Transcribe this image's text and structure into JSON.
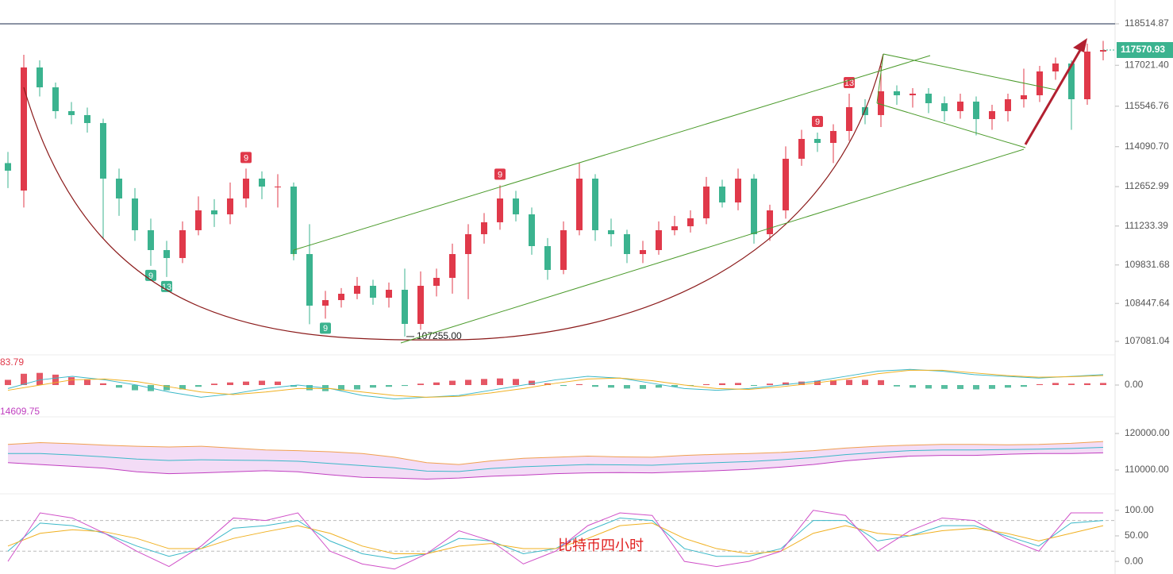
{
  "chart_data": [
    {
      "type": "candlestick",
      "open": [
        113500,
        112512,
        116943,
        116228,
        115371,
        115228,
        114942,
        112941,
        112226,
        111083,
        110368,
        110082,
        111083,
        111798,
        111655,
        112226,
        112941,
        112655,
        112655,
        110225,
        108367,
        108567,
        108796,
        109082,
        108653,
        108939,
        107710,
        109082,
        109368,
        110225,
        110940,
        111369,
        112226,
        111655,
        110511,
        109654,
        111083,
        112941,
        111083,
        110940,
        110225,
        110368,
        111083,
        111226,
        111512,
        112655,
        112083,
        112941,
        110940,
        111798,
        113656,
        114370,
        114227,
        114656,
        115514,
        115228,
        116085,
        115942,
        116000,
        115656,
        115371,
        115714,
        115085,
        115371,
        115799,
        115942,
        116800,
        117086,
        115799,
        117515
      ],
      "high": [
        113900,
        117400,
        117200,
        116400,
        115700,
        115500,
        115100,
        113300,
        112600,
        111500,
        110700,
        111400,
        112300,
        112200,
        112800,
        113300,
        113200,
        113100,
        112800,
        111300,
        108900,
        109000,
        109400,
        109300,
        109200,
        109700,
        109600,
        109700,
        110600,
        111300,
        111700,
        112700,
        112500,
        111900,
        110800,
        111400,
        113500,
        113100,
        111500,
        111100,
        110700,
        111400,
        111600,
        111800,
        113000,
        112900,
        113300,
        113100,
        112000,
        114100,
        114700,
        114600,
        114900,
        116000,
        115800,
        117000,
        116300,
        116200,
        116200,
        115900,
        116000,
        115900,
        115600,
        116000,
        116900,
        117000,
        117300,
        117200,
        117800,
        117900
      ],
      "low": [
        112600,
        111900,
        115900,
        115100,
        114900,
        114600,
        110800,
        111600,
        110700,
        109800,
        109400,
        109900,
        110900,
        111200,
        111300,
        111900,
        112200,
        111900,
        110000,
        107700,
        107900,
        108300,
        108600,
        108400,
        108300,
        107255,
        107500,
        108700,
        108800,
        108600,
        110600,
        111100,
        111400,
        110200,
        109300,
        109500,
        110900,
        110700,
        110500,
        109900,
        109900,
        110200,
        110900,
        111000,
        111300,
        111900,
        111800,
        110600,
        110700,
        111500,
        113400,
        113900,
        113500,
        114300,
        114900,
        114800,
        115600,
        115500,
        115300,
        115000,
        115100,
        114500,
        114700,
        115000,
        115500,
        115700,
        116500,
        114700,
        115600,
        117200
      ],
      "close": [
        113227,
        116943,
        116228,
        115371,
        115228,
        114942,
        112941,
        112226,
        111083,
        110368,
        110082,
        111083,
        111798,
        111655,
        112226,
        112941,
        112655,
        112655,
        110225,
        108367,
        108567,
        108796,
        109082,
        108653,
        108939,
        107710,
        109082,
        109368,
        110225,
        110940,
        111369,
        112226,
        111655,
        110511,
        109654,
        111083,
        112941,
        111083,
        110940,
        110225,
        110368,
        111083,
        111226,
        111512,
        112655,
        112083,
        112941,
        110940,
        111798,
        113656,
        114370,
        114227,
        114656,
        115514,
        115228,
        116085,
        115942,
        116000,
        115656,
        115371,
        115714,
        115085,
        115371,
        115799,
        115942,
        116800,
        117086,
        115799,
        117515,
        117571
      ],
      "up_color": "#e0394a",
      "down_color": "#3bb38f",
      "ylim": [
        106652,
        119372
      ],
      "yticks": [
        118514.87,
        {
          "value": 117021.4,
          "label": "117021.40"
        },
        115546.76,
        {
          "value": 114090.7,
          "label": "114090.70"
        },
        112652.99,
        111233.39,
        109831.68,
        108447.64,
        107081.04
      ],
      "last_price": 117570.93,
      "low_annotation": {
        "value": 107255,
        "label": "107255.00"
      },
      "setup_labels": [
        "9",
        "13",
        "9",
        "9",
        "9",
        "9",
        "13"
      ]
    },
    {
      "type": "macd",
      "readout": 83.79,
      "hist": [
        300,
        650,
        700,
        600,
        450,
        300,
        100,
        -150,
        -300,
        -350,
        -300,
        -250,
        -100,
        80,
        150,
        200,
        250,
        200,
        -100,
        -300,
        -350,
        -300,
        -250,
        -150,
        -100,
        -50,
        80,
        150,
        250,
        300,
        350,
        380,
        350,
        250,
        100,
        -50,
        50,
        -100,
        -150,
        -200,
        -220,
        -150,
        -100,
        -50,
        50,
        100,
        120,
        -50,
        80,
        150,
        200,
        250,
        280,
        300,
        300,
        280,
        -80,
        -150,
        -200,
        -220,
        -230,
        -250,
        -220,
        -150,
        -100,
        50,
        120,
        80,
        100,
        120
      ],
      "series": [
        {
          "color": "#3bb8c8",
          "values": [
            -200,
            300,
            500,
            300,
            0,
            -400,
            -700,
            -500,
            -200,
            0,
            -200,
            -600,
            -800,
            -700,
            -600,
            -300,
            0,
            300,
            500,
            400,
            100,
            -200,
            -300,
            -200,
            0,
            200,
            500,
            800,
            900,
            800,
            600,
            500,
            400,
            500,
            600
          ]
        },
        {
          "color": "#f0b020",
          "values": [
            -300,
            0,
            300,
            350,
            200,
            -100,
            -400,
            -550,
            -400,
            -200,
            -200,
            -400,
            -600,
            -700,
            -650,
            -450,
            -200,
            100,
            350,
            400,
            250,
            0,
            -200,
            -250,
            -100,
            100,
            350,
            650,
            850,
            850,
            700,
            550,
            450,
            480,
            550
          ]
        }
      ],
      "ylim": [
        -1600,
        1600
      ],
      "yticks": [
        {
          "value": 0,
          "label": "0.00"
        }
      ]
    },
    {
      "type": "bands",
      "readout": 14609.75,
      "series": [
        {
          "color": "#f0a050",
          "values": [
            117000,
            117500,
            117200,
            116800,
            116500,
            116300,
            116500,
            116000,
            115500,
            115300,
            115000,
            114500,
            113500,
            112000,
            111500,
            112500,
            113200,
            113500,
            113800,
            113600,
            113500,
            114000,
            114300,
            114500,
            114800,
            115300,
            116000,
            116500,
            116800,
            117000,
            117000,
            116900,
            117000,
            117300,
            117800
          ]
        },
        {
          "color": "#3bb8c8",
          "values": [
            114500,
            114500,
            114100,
            113600,
            113000,
            112600,
            112800,
            112700,
            112600,
            112400,
            111800,
            111200,
            110600,
            109700,
            109600,
            110400,
            110900,
            111200,
            111500,
            111400,
            111300,
            111700,
            112000,
            112300,
            112800,
            113400,
            114200,
            114800,
            115300,
            115500,
            115500,
            115600,
            115700,
            115900,
            116200
          ]
        },
        {
          "color": "#c040c0",
          "values": [
            112000,
            111500,
            111000,
            110500,
            109500,
            109000,
            109200,
            109500,
            109800,
            109500,
            108700,
            108000,
            107800,
            107500,
            107800,
            108300,
            108600,
            109000,
            109200,
            109300,
            109200,
            109500,
            109800,
            110200,
            110800,
            111500,
            112500,
            113200,
            113800,
            114000,
            114000,
            114300,
            114500,
            114500,
            114700
          ]
        }
      ],
      "fill": "#f3dcf6",
      "ylim": [
        105000,
        123478
      ],
      "yticks": [
        {
          "value": 120000,
          "label": "120000.00"
        },
        {
          "value": 110000,
          "label": "110000.00"
        }
      ]
    },
    {
      "type": "kdj",
      "series": [
        {
          "color": "#3bb8c8",
          "values": [
            20,
            75,
            70,
            55,
            30,
            10,
            25,
            65,
            70,
            80,
            40,
            15,
            5,
            15,
            45,
            40,
            15,
            25,
            60,
            85,
            80,
            25,
            10,
            10,
            25,
            80,
            80,
            40,
            50,
            70,
            70,
            50,
            30,
            75,
            80
          ]
        },
        {
          "color": "#f0b020",
          "values": [
            30,
            55,
            62,
            58,
            45,
            25,
            25,
            45,
            58,
            70,
            55,
            30,
            15,
            15,
            30,
            35,
            25,
            25,
            45,
            70,
            75,
            45,
            25,
            15,
            20,
            55,
            70,
            55,
            50,
            60,
            65,
            55,
            40,
            55,
            70
          ]
        },
        {
          "color": "#d050c8",
          "values": [
            0,
            95,
            85,
            55,
            20,
            -10,
            30,
            85,
            80,
            95,
            20,
            -5,
            -15,
            15,
            60,
            40,
            -5,
            20,
            70,
            95,
            90,
            0,
            -10,
            0,
            20,
            100,
            90,
            20,
            60,
            85,
            80,
            45,
            20,
            95,
            95
          ]
        }
      ],
      "levels": [
        20,
        80
      ],
      "ylim": [
        -20,
        123
      ],
      "yticks": [
        {
          "value": 100,
          "label": "100.00"
        },
        {
          "value": 50,
          "label": "50.00"
        },
        {
          "value": 0,
          "label": "0.00"
        }
      ],
      "annotation": "比特币四小时"
    }
  ]
}
